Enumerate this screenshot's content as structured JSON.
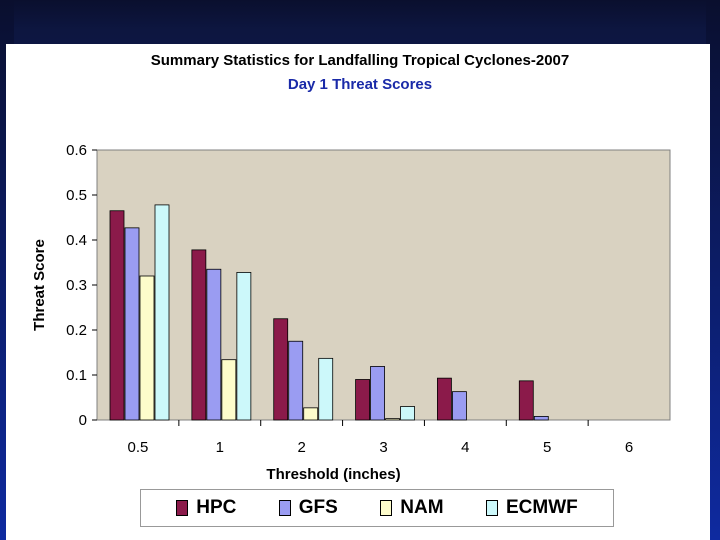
{
  "chart_data": {
    "type": "bar",
    "title": "Summary Statistics for Landfalling Tropical Cyclones-2007",
    "subtitle": "Day 1 Threat Scores",
    "xlabel": "Threshold (inches)",
    "ylabel": "Threat Score",
    "categories": [
      "0.5",
      "1",
      "2",
      "3",
      "4",
      "5",
      "6"
    ],
    "ylim": [
      0,
      0.6
    ],
    "yticks": [
      "0",
      "0.1",
      "0.2",
      "0.3",
      "0.4",
      "0.5",
      "0.6"
    ],
    "series": [
      {
        "name": "HPC",
        "color": "#8b1a4a",
        "values": [
          0.465,
          0.378,
          0.225,
          0.09,
          0.093,
          0.087,
          0
        ]
      },
      {
        "name": "GFS",
        "color": "#9a9cf2",
        "values": [
          0.427,
          0.335,
          0.175,
          0.119,
          0.063,
          0.008,
          0
        ]
      },
      {
        "name": "NAM",
        "color": "#fdfccb",
        "values": [
          0.32,
          0.134,
          0.027,
          0.003,
          0,
          0,
          0
        ]
      },
      {
        "name": "ECMWF",
        "color": "#ccf8fa",
        "values": [
          0.478,
          0.328,
          0.137,
          0.03,
          0,
          0,
          0
        ]
      }
    ],
    "legend_position": "bottom",
    "plot_background": "#d9d2c1"
  }
}
